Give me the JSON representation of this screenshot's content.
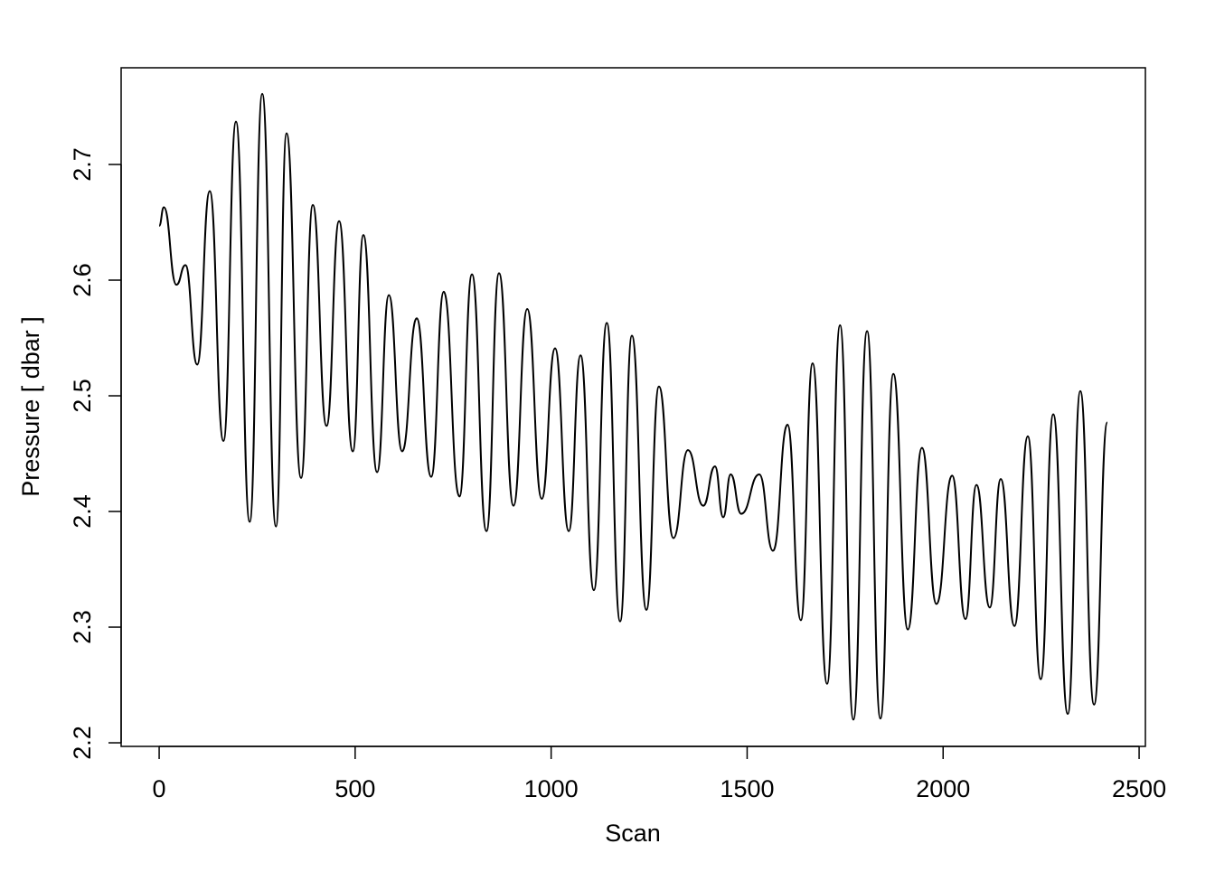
{
  "chart_data": {
    "type": "line",
    "xlabel": "Scan",
    "ylabel": "Pressure [ dbar ]",
    "x": [
      0,
      12,
      44,
      67,
      97,
      129,
      164,
      196,
      231,
      263,
      298,
      325,
      362,
      392,
      427,
      459,
      494,
      521,
      556,
      586,
      620,
      657,
      694,
      726,
      766,
      798,
      835,
      867,
      904,
      939,
      976,
      1010,
      1045,
      1075,
      1109,
      1142,
      1176,
      1206,
      1243,
      1275,
      1312,
      1349,
      1388,
      1418,
      1439,
      1458,
      1485,
      1531,
      1566,
      1603,
      1637,
      1667,
      1704,
      1737,
      1771,
      1806,
      1840,
      1873,
      1910,
      1946,
      1983,
      2023,
      2057,
      2085,
      2119,
      2147,
      2182,
      2216,
      2249,
      2281,
      2318,
      2350,
      2385,
      2419
    ],
    "values": [
      2.647,
      2.663,
      2.596,
      2.613,
      2.527,
      2.677,
      2.461,
      2.737,
      2.391,
      2.761,
      2.387,
      2.727,
      2.429,
      2.665,
      2.474,
      2.651,
      2.452,
      2.639,
      2.434,
      2.587,
      2.452,
      2.567,
      2.43,
      2.59,
      2.413,
      2.605,
      2.383,
      2.606,
      2.405,
      2.575,
      2.411,
      2.541,
      2.383,
      2.535,
      2.332,
      2.563,
      2.305,
      2.552,
      2.315,
      2.508,
      2.377,
      2.453,
      2.405,
      2.439,
      2.395,
      2.432,
      2.398,
      2.432,
      2.366,
      2.475,
      2.306,
      2.528,
      2.251,
      2.561,
      2.22,
      2.556,
      2.221,
      2.519,
      2.298,
      2.455,
      2.32,
      2.431,
      2.307,
      2.423,
      2.317,
      2.428,
      2.301,
      2.465,
      2.255,
      2.484,
      2.225,
      2.504,
      2.233,
      2.477
    ],
    "color": "#000000",
    "xlim": [
      -97,
      2516
    ],
    "ylim": [
      2.1969,
      2.7836
    ],
    "xticks": [
      0,
      500,
      1000,
      1500,
      2000,
      2500
    ],
    "yticks": [
      2.2,
      2.3,
      2.4,
      2.5,
      2.6,
      2.7
    ]
  }
}
